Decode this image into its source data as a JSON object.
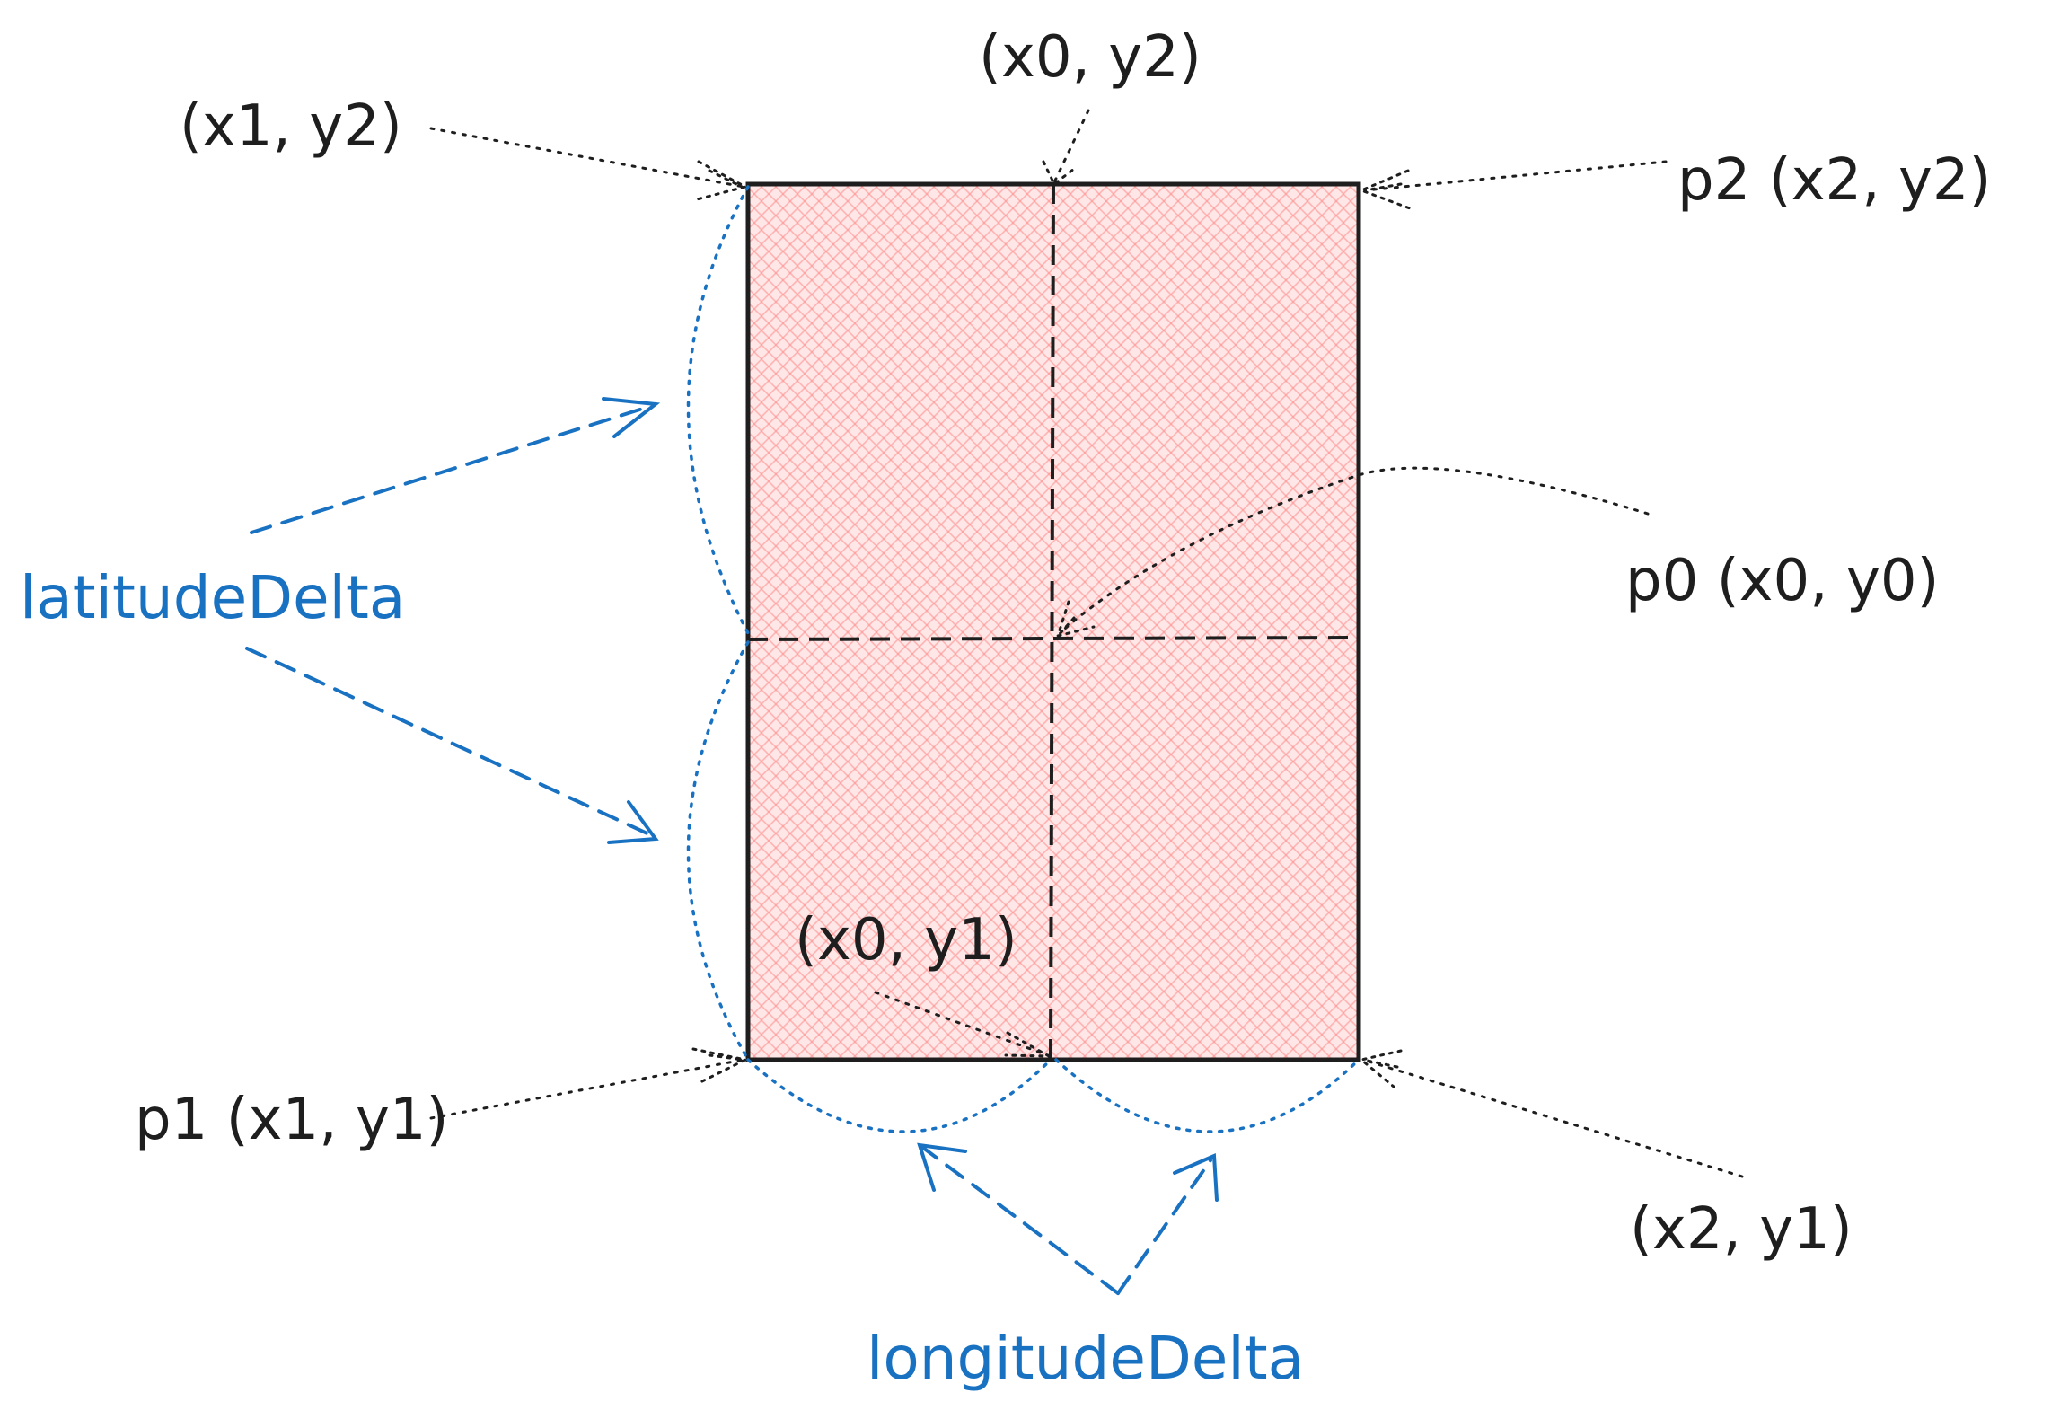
{
  "labels": {
    "x1_y2": "(x1, y2)",
    "x0_y2": "(x0, y2)",
    "p2": "p2 (x2, y2)",
    "p0": "p0 (x0, y0)",
    "x0_y1": "(x0, y1)",
    "p1": "p1 (x1, y1)",
    "x2_y1": "(x2, y1)",
    "latitude_delta": "latitudeDelta",
    "longitude_delta": "longitudeDelta"
  },
  "colors": {
    "region_fill": "#ffc9c9",
    "hatch": "#ff8787",
    "stroke": "#1e1e1e",
    "accent_blue": "#1971c2"
  }
}
